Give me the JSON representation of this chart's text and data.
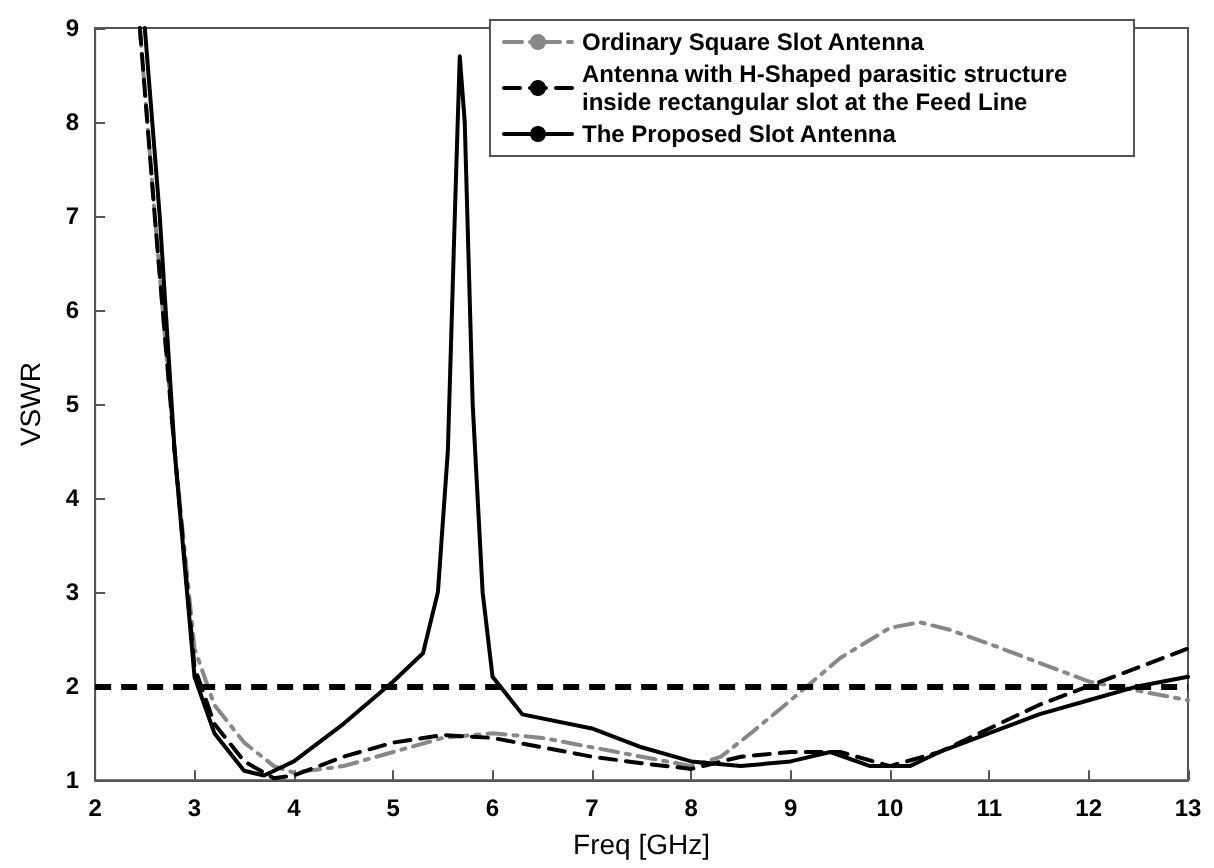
{
  "chart_data": {
    "type": "line",
    "xlabel": "Freq [GHz]",
    "ylabel": "VSWR",
    "xlim": [
      2,
      13
    ],
    "ylim": [
      1,
      9
    ],
    "xticks": [
      2,
      3,
      4,
      5,
      6,
      7,
      8,
      9,
      10,
      11,
      12,
      13
    ],
    "yticks": [
      1,
      2,
      3,
      4,
      5,
      6,
      7,
      8,
      9
    ],
    "grid": false,
    "legend": "top right",
    "marker": "none",
    "ref_lines": [
      {
        "axis": "y",
        "value": 2,
        "color": "#000000",
        "line_style": "dashed"
      }
    ],
    "series": [
      {
        "name": "Ordinary Square Slot Antenna",
        "color": "#888888",
        "line_style": "dashdot",
        "x": [
          2.45,
          2.6,
          2.8,
          3.0,
          3.2,
          3.5,
          3.8,
          4.0,
          4.5,
          5,
          5.5,
          6,
          6.5,
          7,
          7.5,
          8,
          8.3,
          8.6,
          9,
          9.5,
          10,
          10.3,
          10.6,
          11,
          11.5,
          12,
          12.5,
          13
        ],
        "values": [
          9,
          7,
          4.5,
          2.4,
          1.8,
          1.4,
          1.15,
          1.08,
          1.15,
          1.3,
          1.45,
          1.5,
          1.45,
          1.35,
          1.25,
          1.15,
          1.25,
          1.5,
          1.85,
          2.3,
          2.62,
          2.68,
          2.6,
          2.45,
          2.25,
          2.05,
          1.95,
          1.85
        ]
      },
      {
        "name": "Antenna with H-Shaped parasitic structure inside rectangular slot at the Feed Line",
        "color": "#000000",
        "line_style": "dashed",
        "x": [
          2.45,
          2.6,
          2.8,
          3.0,
          3.2,
          3.5,
          3.8,
          4.0,
          4.5,
          5,
          5.5,
          6,
          6.5,
          7,
          7.5,
          8,
          8.5,
          9,
          9.5,
          10,
          10.5,
          11,
          11.5,
          12,
          12.5,
          13
        ],
        "values": [
          9,
          7,
          4.5,
          2.2,
          1.6,
          1.2,
          1.02,
          1.05,
          1.25,
          1.4,
          1.48,
          1.45,
          1.35,
          1.25,
          1.18,
          1.12,
          1.25,
          1.3,
          1.3,
          1.15,
          1.3,
          1.55,
          1.8,
          2.0,
          2.2,
          2.4
        ]
      },
      {
        "name": "The Proposed Slot Antenna",
        "color": "#000000",
        "line_style": "solid",
        "x": [
          2.5,
          2.65,
          2.8,
          3.0,
          3.2,
          3.5,
          3.7,
          4,
          4.5,
          5,
          5.3,
          5.45,
          5.55,
          5.62,
          5.67,
          5.72,
          5.8,
          5.9,
          6.0,
          6.3,
          7,
          7.5,
          8,
          8.5,
          9,
          9.4,
          9.8,
          10.2,
          10.5,
          11,
          11.5,
          12,
          12.5,
          13
        ],
        "values": [
          9,
          7,
          4.5,
          2.1,
          1.5,
          1.1,
          1.05,
          1.2,
          1.6,
          2.05,
          2.35,
          3,
          4.5,
          7,
          8.7,
          8,
          5,
          3,
          2.1,
          1.7,
          1.55,
          1.35,
          1.2,
          1.15,
          1.2,
          1.3,
          1.15,
          1.15,
          1.3,
          1.5,
          1.7,
          1.85,
          2.0,
          2.1
        ]
      }
    ]
  }
}
